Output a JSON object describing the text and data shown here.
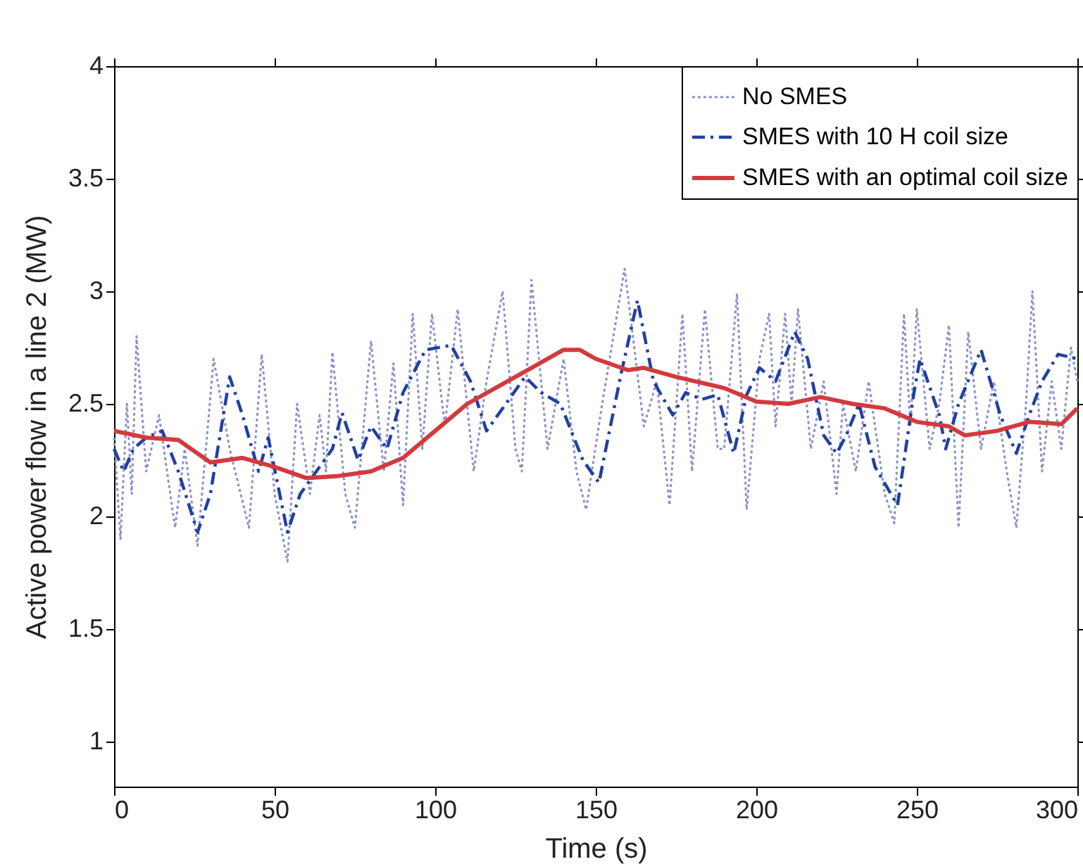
{
  "chart_data": {
    "type": "line",
    "xlabel": "Time (s)",
    "ylabel": "Active power flow in a line 2 (MW)",
    "xlim": [
      0,
      300
    ],
    "xticks": [
      0,
      50,
      100,
      150,
      200,
      250,
      300
    ],
    "ylim": [
      0.8,
      4
    ],
    "yticks": [
      1,
      1.5,
      2,
      2.5,
      3,
      3.5,
      4
    ],
    "grid": false,
    "legend": "top right",
    "marker": "none",
    "series": [
      {
        "name": "No SMES",
        "color": "#8a90c8",
        "line_style": "dotted",
        "x": [
          0,
          2,
          4,
          5.5,
          7,
          10,
          14,
          19,
          22,
          26,
          31,
          36,
          42,
          46,
          50,
          54,
          57,
          61,
          64,
          66,
          68,
          72,
          75,
          80,
          84,
          87,
          90,
          93,
          96,
          99,
          103,
          107,
          112,
          116,
          121,
          125,
          127,
          130,
          135,
          140,
          144,
          147,
          152,
          159,
          165,
          169,
          173,
          177,
          180,
          184,
          188,
          190,
          194,
          197,
          201,
          204,
          206,
          209,
          211,
          213,
          217,
          221,
          225,
          227,
          231,
          235,
          240,
          243,
          246,
          248,
          250,
          254,
          257,
          260,
          263,
          266,
          270,
          274,
          278,
          281,
          284,
          286,
          289,
          292,
          295,
          298,
          300
        ],
        "values": [
          2.35,
          1.9,
          2.5,
          2.1,
          2.8,
          2.2,
          2.45,
          1.95,
          2.3,
          1.87,
          2.7,
          2.3,
          1.95,
          2.72,
          2.1,
          1.8,
          2.5,
          2.1,
          2.45,
          2.2,
          2.73,
          2.1,
          1.95,
          2.78,
          2.2,
          2.68,
          2.05,
          2.9,
          2.3,
          2.9,
          2.4,
          2.92,
          2.2,
          2.6,
          3.0,
          2.3,
          2.2,
          3.05,
          2.3,
          2.7,
          2.2,
          2.03,
          2.5,
          3.1,
          2.4,
          2.6,
          2.05,
          2.9,
          2.2,
          2.92,
          2.3,
          2.3,
          2.99,
          2.03,
          2.7,
          2.9,
          2.4,
          2.9,
          2.5,
          2.92,
          2.3,
          2.6,
          2.1,
          2.5,
          2.2,
          2.6,
          2.1,
          1.97,
          2.9,
          2.4,
          2.92,
          2.3,
          2.5,
          2.85,
          1.95,
          2.82,
          2.3,
          2.6,
          2.2,
          1.95,
          2.5,
          3.0,
          2.2,
          2.6,
          2.3,
          2.75,
          2.6
        ]
      },
      {
        "name": "SMES with 10 H coil size",
        "color": "#2140a0",
        "line_style": "dashed",
        "x": [
          0,
          3,
          6,
          10,
          15,
          20,
          26,
          30,
          36,
          40,
          45,
          48,
          54,
          58,
          63,
          68,
          71,
          76,
          80,
          85,
          90,
          97,
          105,
          111,
          116,
          122,
          128,
          133,
          139,
          146,
          151,
          155,
          158,
          163,
          168,
          174,
          178,
          183,
          188,
          193,
          197,
          201,
          206,
          212,
          216,
          221,
          225,
          228,
          232,
          237,
          244,
          249,
          251,
          257,
          259,
          263,
          270,
          276,
          281,
          285,
          289,
          294,
          300
        ],
        "values": [
          2.3,
          2.2,
          2.3,
          2.35,
          2.38,
          2.2,
          1.93,
          2.1,
          2.62,
          2.45,
          2.2,
          2.35,
          1.93,
          2.1,
          2.2,
          2.3,
          2.46,
          2.25,
          2.4,
          2.3,
          2.55,
          2.74,
          2.76,
          2.6,
          2.38,
          2.5,
          2.62,
          2.55,
          2.5,
          2.25,
          2.15,
          2.43,
          2.64,
          2.96,
          2.6,
          2.45,
          2.55,
          2.52,
          2.54,
          2.28,
          2.54,
          2.66,
          2.6,
          2.82,
          2.7,
          2.36,
          2.28,
          2.36,
          2.5,
          2.22,
          2.05,
          2.54,
          2.7,
          2.45,
          2.3,
          2.5,
          2.74,
          2.45,
          2.28,
          2.45,
          2.6,
          2.72,
          2.7
        ]
      },
      {
        "name": "SMES with an optimal coil size",
        "color": "#d33a3e",
        "line_style": "solid",
        "x": [
          0,
          10,
          20,
          30,
          40,
          50,
          60,
          70,
          80,
          90,
          100,
          110,
          120,
          130,
          140,
          145,
          150,
          160,
          165,
          175,
          190,
          200,
          210,
          220,
          230,
          240,
          250,
          260,
          265,
          275,
          285,
          295,
          300
        ],
        "values": [
          2.38,
          2.35,
          2.34,
          2.24,
          2.26,
          2.22,
          2.17,
          2.18,
          2.2,
          2.26,
          2.38,
          2.5,
          2.58,
          2.66,
          2.74,
          2.74,
          2.7,
          2.65,
          2.66,
          2.62,
          2.57,
          2.51,
          2.5,
          2.53,
          2.5,
          2.48,
          2.42,
          2.4,
          2.36,
          2.38,
          2.42,
          2.41,
          2.48
        ]
      }
    ]
  }
}
